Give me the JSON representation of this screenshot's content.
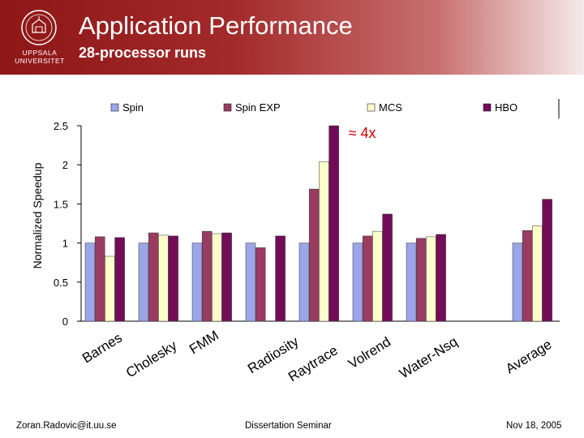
{
  "header": {
    "logo_text": "UPPSALA UNIVERSITET",
    "university_name": "UPPSALA UNIVERSITET",
    "title": "Application Performance",
    "subtitle": "28-processor runs"
  },
  "footer": {
    "author_email": "Zoran.Radovic@it.uu.se",
    "event": "Dissertation Seminar",
    "date": "Nov 18, 2005"
  },
  "colors": {
    "header_dark": "#8f1616",
    "spin": "#9aa6e6",
    "spin_exp": "#9a3c62",
    "mcs": "#ffffcc",
    "hbo": "#730c58",
    "annotation": "#cc0000"
  },
  "chart_data": {
    "type": "bar",
    "ylabel": "Normalized Speedup",
    "xlabel": "",
    "ylim": [
      0,
      2.5
    ],
    "yticks": [
      0,
      0.5,
      1,
      1.5,
      2,
      2.5
    ],
    "grid": false,
    "legend_position": "top",
    "categories": [
      "Barnes",
      "Cholesky",
      "FMM",
      "Radiosity",
      "Raytrace",
      "Volrend",
      "Water-Nsq",
      "Average"
    ],
    "series": [
      {
        "name": "Spin",
        "values": [
          1.0,
          1.0,
          1.0,
          1.0,
          1.0,
          1.0,
          1.0,
          1.0
        ]
      },
      {
        "name": "Spin EXP",
        "values": [
          1.08,
          1.13,
          1.15,
          0.94,
          1.69,
          1.09,
          1.06,
          1.16
        ]
      },
      {
        "name": "MCS",
        "values": [
          0.83,
          1.1,
          1.12,
          null,
          2.04,
          1.15,
          1.08,
          1.22
        ]
      },
      {
        "name": "HBO",
        "values": [
          1.07,
          1.09,
          1.13,
          1.09,
          2.5,
          1.37,
          1.11,
          1.56
        ]
      }
    ],
    "annotation": {
      "text": "≈ 4x",
      "category": "Raytrace",
      "series": "HBO"
    }
  }
}
